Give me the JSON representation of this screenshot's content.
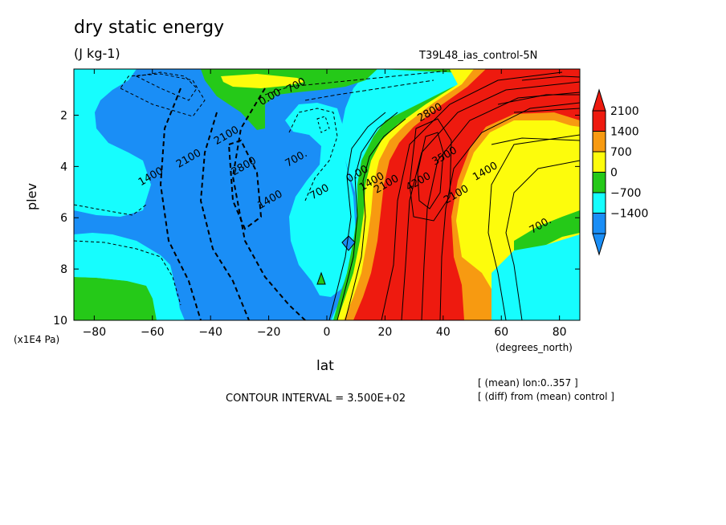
{
  "chart_data": {
    "type": "heatmap",
    "title": "dry static energy",
    "units": "(J kg-1)",
    "case_label": "T39L48_ias_control-5N",
    "xlabel": "lat",
    "xlabel_units": "(degrees_north)",
    "ylabel": "plev",
    "ylabel_units": "(x1E4 Pa)",
    "xlim": [
      -87,
      87
    ],
    "ylim": [
      10,
      0.2
    ],
    "x_ticks": [
      -80,
      -60,
      -40,
      -20,
      0,
      20,
      40,
      60,
      80
    ],
    "x_tick_labels": [
      "−80",
      "−60",
      "−40",
      "−20",
      "0",
      "20",
      "40",
      "60",
      "80"
    ],
    "y_ticks": [
      2,
      4,
      6,
      8,
      10
    ],
    "y_tick_labels": [
      "2",
      "4",
      "6",
      "8",
      "10"
    ],
    "contour_interval_text": "CONTOUR INTERVAL = 3.500E+02",
    "contour_labels": [
      {
        "text": "700",
        "lat": -10,
        "plev": 0.95
      },
      {
        "text": "0.00",
        "lat": -19,
        "plev": 1.4
      },
      {
        "text": "2100",
        "lat": -34,
        "plev": 2.9
      },
      {
        "text": "2100",
        "lat": -47,
        "plev": 3.8
      },
      {
        "text": "2800",
        "lat": -28,
        "plev": 4.1
      },
      {
        "text": "1400",
        "lat": -60,
        "plev": 4.5
      },
      {
        "text": "700.",
        "lat": -10,
        "plev": 3.8
      },
      {
        "text": "1400",
        "lat": -19,
        "plev": 5.4
      },
      {
        "text": "700",
        "lat": -2,
        "plev": 5.1
      },
      {
        "text": "0.00",
        "lat": 11,
        "plev": 4.4
      },
      {
        "text": "1400",
        "lat": 16,
        "plev": 4.7
      },
      {
        "text": "2100",
        "lat": 21,
        "plev": 4.8
      },
      {
        "text": "2800",
        "lat": 36,
        "plev": 2.0
      },
      {
        "text": "4200",
        "lat": 32,
        "plev": 4.7
      },
      {
        "text": "3500",
        "lat": 41,
        "plev": 3.7
      },
      {
        "text": "2100",
        "lat": 45,
        "plev": 5.2
      },
      {
        "text": "1400",
        "lat": 55,
        "plev": 4.3
      },
      {
        "text": "700.",
        "lat": 74,
        "plev": 6.4
      }
    ],
    "colorbar": {
      "labels": [
        "2100",
        "1400",
        "700",
        "0",
        "−700",
        "−1400"
      ],
      "colors": [
        "#ee1a0f",
        "#f79a11",
        "#fdfc0c",
        "#25c918",
        "#16fdfe",
        "#1a8ef6"
      ],
      "extend_top_color": "#ee1a0f",
      "extend_bottom_color": "#1a8ef6"
    },
    "notes": [
      "[ (mean) lon:0..357 ]",
      "[ (diff) from (mean) control ]"
    ]
  }
}
